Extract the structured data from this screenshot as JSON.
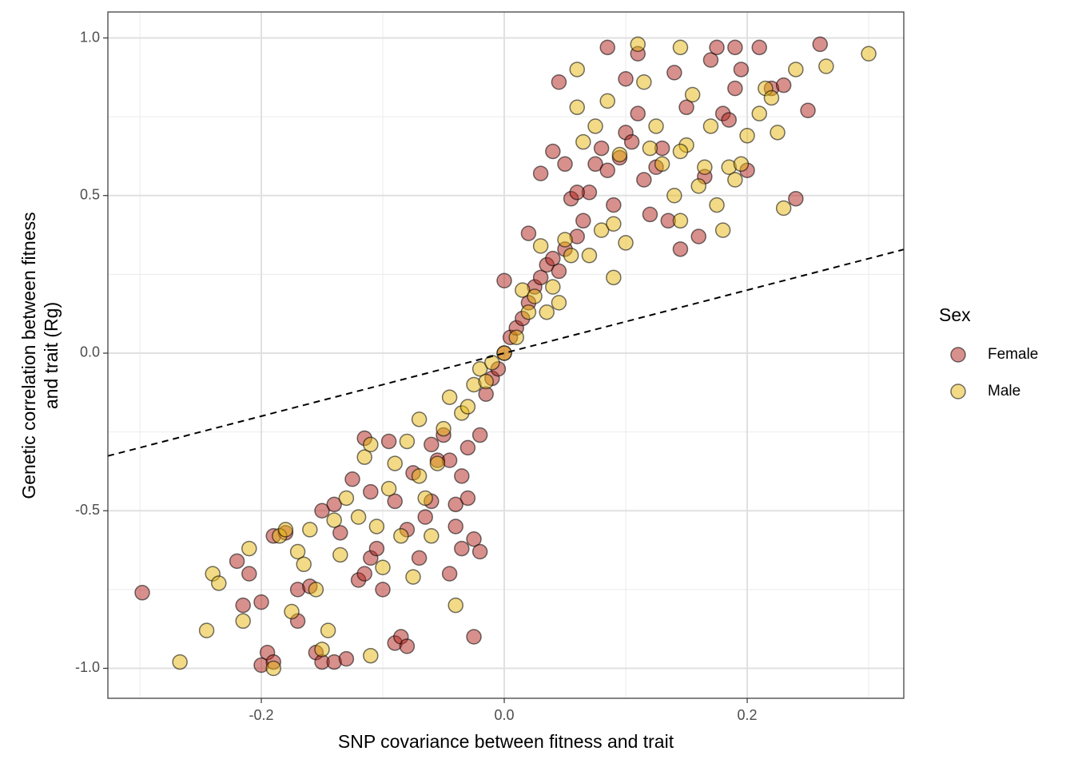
{
  "chart_data": {
    "type": "scatter",
    "xlabel": "SNP covariance between fitness and trait",
    "ylabel": [
      "Genetic correlation between fitness",
      "and trait (Rg)"
    ],
    "legend_title": "Sex",
    "legend_position": "right",
    "grid": true,
    "xlim": [
      -0.3263,
      0.3289
    ],
    "ylim": [
      -1.0951,
      1.0824
    ],
    "xticks": [
      {
        "value": -0.2,
        "label": "-0.2"
      },
      {
        "value": 0,
        "label": "0.0"
      },
      {
        "value": 0.2,
        "label": "0.2"
      }
    ],
    "yticks": [
      {
        "value": -1,
        "label": "-1.0"
      },
      {
        "value": -0.5,
        "label": "-0.5"
      },
      {
        "value": 0,
        "label": "0.0"
      },
      {
        "value": 0.5,
        "label": "0.5"
      },
      {
        "value": 1,
        "label": "1.0"
      }
    ],
    "xminor": [
      -0.3,
      -0.1,
      0.1,
      0.3
    ],
    "yminor": [
      -0.75,
      -0.25,
      0.25,
      0.75
    ],
    "reference_line": {
      "slope": 1,
      "intercept": 0
    },
    "series": [
      {
        "name": "Female",
        "color": "#b2221b",
        "x": [
          -0.298,
          -0.22,
          -0.21,
          -0.215,
          -0.2,
          -0.195,
          -0.2,
          -0.19,
          -0.19,
          -0.18,
          -0.17,
          -0.17,
          -0.16,
          -0.155,
          -0.15,
          -0.14,
          -0.13,
          -0.15,
          -0.14,
          -0.135,
          -0.125,
          -0.12,
          -0.115,
          -0.11,
          -0.115,
          -0.11,
          -0.105,
          -0.1,
          -0.095,
          -0.09,
          -0.09,
          -0.085,
          -0.08,
          -0.08,
          -0.075,
          -0.07,
          -0.065,
          -0.06,
          -0.06,
          -0.055,
          -0.05,
          -0.045,
          -0.045,
          -0.04,
          -0.04,
          -0.035,
          -0.035,
          -0.03,
          -0.03,
          -0.025,
          -0.025,
          -0.02,
          -0.02,
          -0.015,
          -0.01,
          -0.005,
          0,
          0.005,
          0.01,
          0.015,
          0.02,
          0.025,
          0.03,
          0.035,
          0.04,
          0.045,
          0.05,
          0.055,
          0.06,
          0.065,
          0.07,
          0.075,
          0.08,
          0.085,
          0.09,
          0.095,
          0.1,
          0.105,
          0.11,
          0.115,
          0.12,
          0.125,
          0.13,
          0.135,
          0.14,
          0.145,
          0.15,
          0.16,
          0.165,
          0.17,
          0.175,
          0.18,
          0.185,
          0.19,
          0.19,
          0.195,
          0.2,
          0.21,
          0.22,
          0.23,
          0.24,
          0.25,
          0.26,
          0.02,
          0,
          0.03,
          0.05,
          0.045,
          0.04,
          0.06,
          0.085,
          0.1,
          0.11
        ],
        "values": [
          -0.76,
          -0.66,
          -0.7,
          -0.8,
          -0.79,
          -0.95,
          -0.99,
          -0.98,
          -0.58,
          -0.57,
          -0.75,
          -0.85,
          -0.74,
          -0.95,
          -0.98,
          -0.98,
          -0.97,
          -0.5,
          -0.48,
          -0.57,
          -0.4,
          -0.72,
          -0.7,
          -0.65,
          -0.27,
          -0.44,
          -0.62,
          -0.75,
          -0.28,
          -0.47,
          -0.92,
          -0.9,
          -0.93,
          -0.56,
          -0.38,
          -0.65,
          -0.52,
          -0.47,
          -0.29,
          -0.34,
          -0.26,
          -0.34,
          -0.7,
          -0.48,
          -0.55,
          -0.39,
          -0.62,
          -0.46,
          -0.3,
          -0.59,
          -0.9,
          -0.26,
          -0.63,
          -0.13,
          -0.08,
          -0.05,
          0,
          0.05,
          0.08,
          0.11,
          0.16,
          0.21,
          0.24,
          0.28,
          0.3,
          0.26,
          0.33,
          0.49,
          0.37,
          0.42,
          0.51,
          0.6,
          0.65,
          0.58,
          0.47,
          0.62,
          0.7,
          0.67,
          0.76,
          0.55,
          0.44,
          0.59,
          0.65,
          0.42,
          0.89,
          0.33,
          0.78,
          0.37,
          0.56,
          0.93,
          0.97,
          0.76,
          0.74,
          0.97,
          0.84,
          0.9,
          0.58,
          0.97,
          0.84,
          0.85,
          0.49,
          0.77,
          0.98,
          0.38,
          0.23,
          0.57,
          0.6,
          0.86,
          0.64,
          0.51,
          0.97,
          0.87,
          0.95
        ]
      },
      {
        "name": "Male",
        "color": "#e5b50f",
        "x": [
          -0.267,
          -0.245,
          -0.24,
          -0.235,
          -0.215,
          -0.21,
          -0.19,
          -0.185,
          -0.18,
          -0.175,
          -0.17,
          -0.165,
          -0.16,
          -0.155,
          -0.15,
          -0.145,
          -0.14,
          -0.135,
          -0.13,
          -0.12,
          -0.115,
          -0.11,
          -0.11,
          -0.105,
          -0.1,
          -0.095,
          -0.09,
          -0.085,
          -0.08,
          -0.075,
          -0.07,
          -0.07,
          -0.065,
          -0.06,
          -0.055,
          -0.05,
          -0.045,
          -0.04,
          -0.035,
          -0.03,
          -0.025,
          -0.02,
          -0.015,
          -0.01,
          0,
          0.01,
          0.015,
          0.02,
          0.025,
          0.03,
          0.035,
          0.04,
          0.045,
          0.05,
          0.055,
          0.06,
          0.06,
          0.065,
          0.07,
          0.075,
          0.08,
          0.085,
          0.09,
          0.09,
          0.095,
          0.1,
          0.11,
          0.115,
          0.12,
          0.125,
          0.13,
          0.14,
          0.145,
          0.145,
          0.15,
          0.155,
          0.16,
          0.165,
          0.17,
          0.175,
          0.18,
          0.185,
          0.19,
          0.195,
          0.2,
          0.21,
          0.215,
          0.22,
          0.225,
          0.23,
          0.24,
          0.265,
          0.3,
          0.145
        ],
        "values": [
          -0.98,
          -0.88,
          -0.7,
          -0.73,
          -0.85,
          -0.62,
          -1,
          -0.58,
          -0.56,
          -0.82,
          -0.63,
          -0.67,
          -0.56,
          -0.75,
          -0.94,
          -0.88,
          -0.53,
          -0.64,
          -0.46,
          -0.52,
          -0.33,
          -0.96,
          -0.29,
          -0.55,
          -0.68,
          -0.43,
          -0.35,
          -0.58,
          -0.28,
          -0.71,
          -0.39,
          -0.21,
          -0.46,
          -0.58,
          -0.35,
          -0.24,
          -0.14,
          -0.8,
          -0.19,
          -0.17,
          -0.1,
          -0.05,
          -0.09,
          -0.03,
          0,
          0.05,
          0.2,
          0.13,
          0.18,
          0.34,
          0.13,
          0.21,
          0.16,
          0.36,
          0.31,
          0.78,
          0.9,
          0.67,
          0.31,
          0.72,
          0.39,
          0.8,
          0.24,
          0.41,
          0.63,
          0.35,
          0.98,
          0.86,
          0.65,
          0.72,
          0.6,
          0.5,
          0.42,
          0.97,
          0.66,
          0.82,
          0.53,
          0.59,
          0.72,
          0.47,
          0.39,
          0.59,
          0.55,
          0.6,
          0.69,
          0.76,
          0.84,
          0.81,
          0.7,
          0.46,
          0.9,
          0.91,
          0.95,
          0.64
        ]
      }
    ]
  }
}
